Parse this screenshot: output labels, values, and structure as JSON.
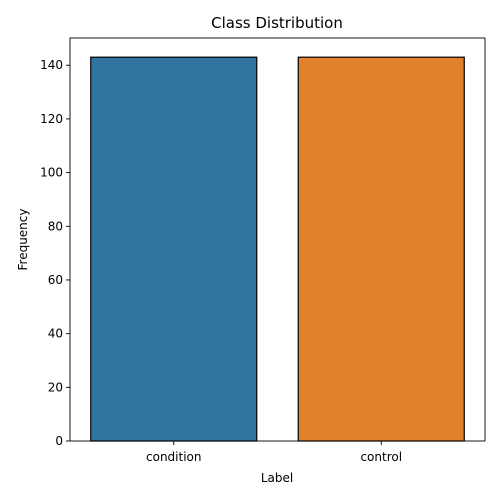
{
  "chart_data": {
    "type": "bar",
    "title": "Class Distribution",
    "xlabel": "Label",
    "ylabel": "Frequency",
    "categories": [
      "condition",
      "control"
    ],
    "values": [
      143,
      143
    ],
    "colors": [
      "#3274a1",
      "#e1812c"
    ],
    "edge_color": "#000000",
    "ylim": [
      0,
      150.15
    ],
    "yticks": [
      0,
      20,
      40,
      60,
      80,
      100,
      120,
      140
    ],
    "grid": false,
    "legend": "none"
  }
}
